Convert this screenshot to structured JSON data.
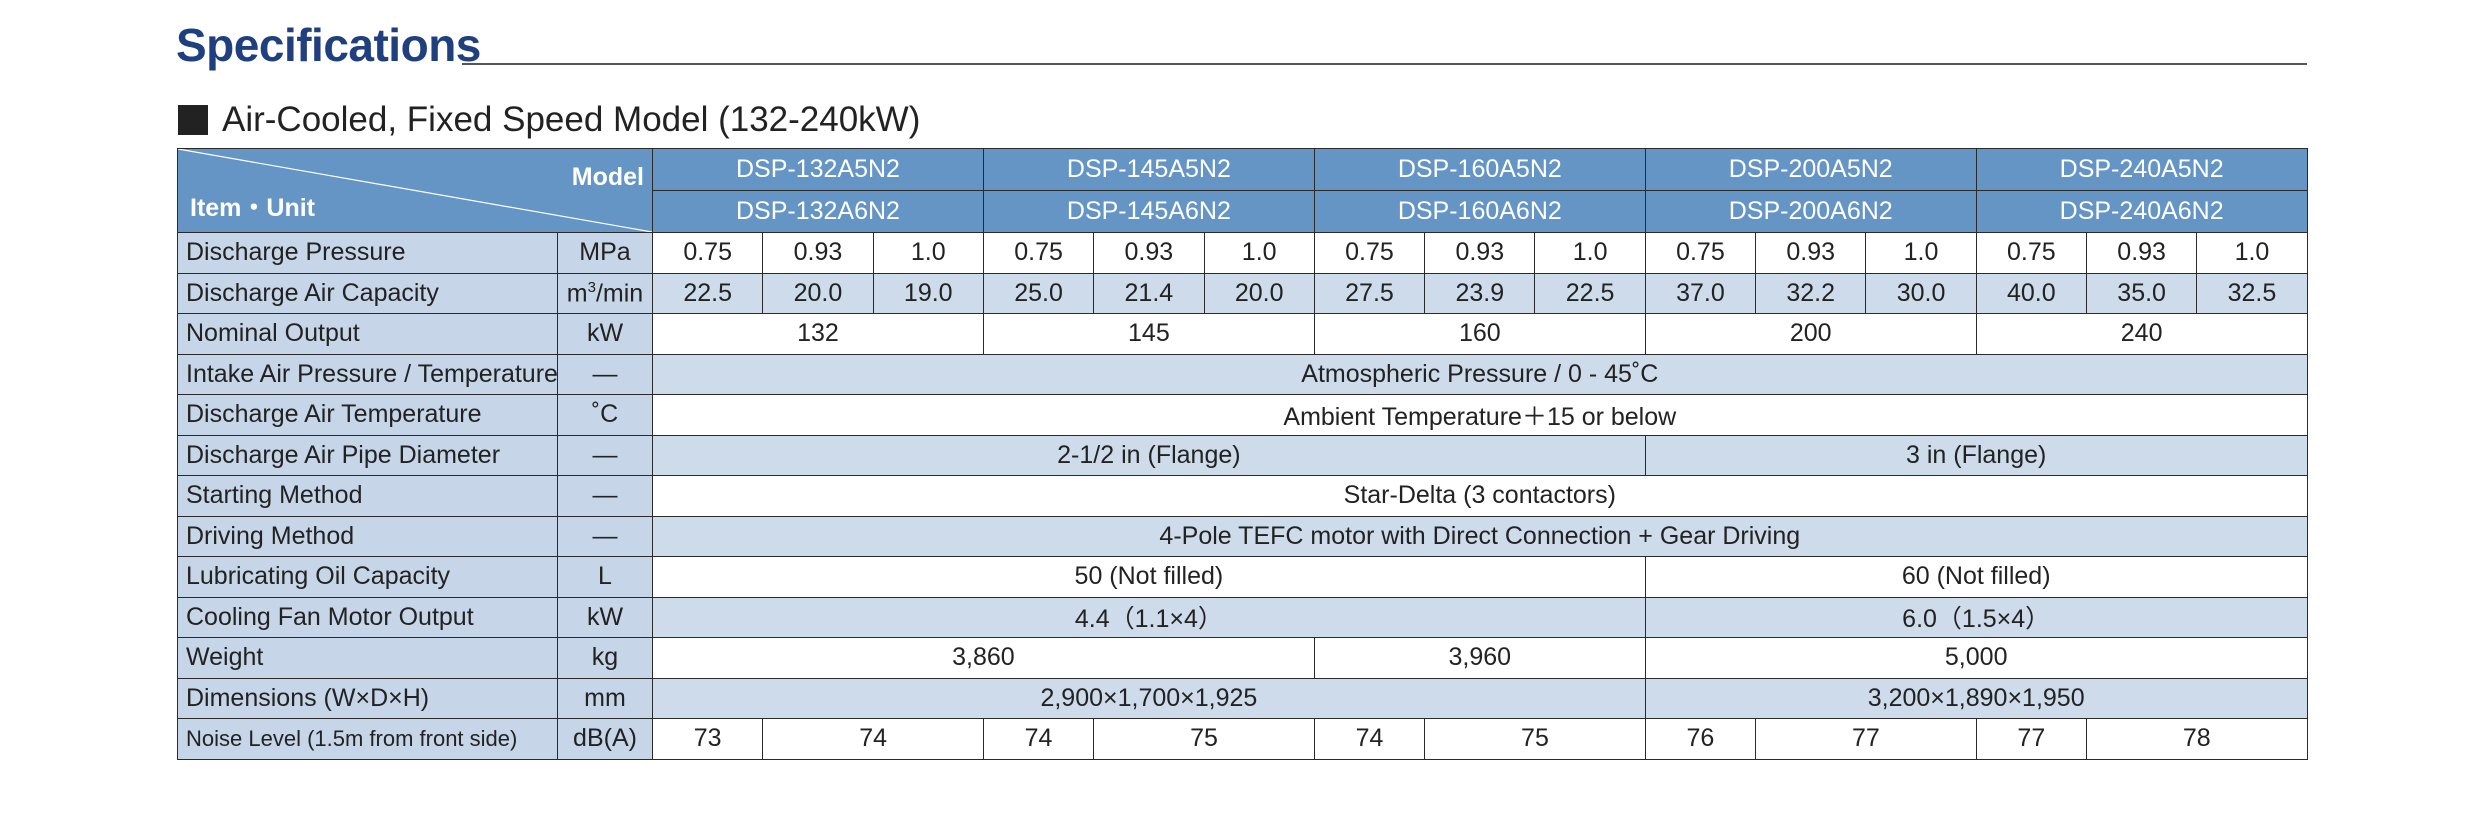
{
  "title": "Specifications",
  "section_heading": "Air-Cooled, Fixed Speed Model (132-240kW)",
  "table": {
    "corner_model_label": "Model",
    "corner_item_label": "Item・Unit",
    "models": [
      {
        "line1": "DSP-132A5N2",
        "line2": "DSP-132A6N2"
      },
      {
        "line1": "DSP-145A5N2",
        "line2": "DSP-145A6N2"
      },
      {
        "line1": "DSP-160A5N2",
        "line2": "DSP-160A6N2"
      },
      {
        "line1": "DSP-200A5N2",
        "line2": "DSP-200A6N2"
      },
      {
        "line1": "DSP-240A5N2",
        "line2": "DSP-240A6N2"
      }
    ],
    "rows": {
      "discharge_pressure": {
        "item": "Discharge Pressure",
        "unit": "MPa",
        "values": [
          "0.75",
          "0.93",
          "1.0",
          "0.75",
          "0.93",
          "1.0",
          "0.75",
          "0.93",
          "1.0",
          "0.75",
          "0.93",
          "1.0",
          "0.75",
          "0.93",
          "1.0"
        ]
      },
      "discharge_air_capacity": {
        "item": "Discharge Air Capacity",
        "unit_prefix": "m",
        "unit_sup": "3",
        "unit_suffix": "/min",
        "values": [
          "22.5",
          "20.0",
          "19.0",
          "25.0",
          "21.4",
          "20.0",
          "27.5",
          "23.9",
          "22.5",
          "37.0",
          "32.2",
          "30.0",
          "40.0",
          "35.0",
          "32.5"
        ]
      },
      "nominal_output": {
        "item": "Nominal Output",
        "unit": "kW",
        "values": [
          "132",
          "145",
          "160",
          "200",
          "240"
        ]
      },
      "intake_air": {
        "item": "Intake Air Pressure / Temperature",
        "unit": "—",
        "value": "Atmospheric Pressure / 0 - 45˚C"
      },
      "discharge_air_temp": {
        "item": "Discharge Air Temperature",
        "unit": "˚C",
        "value": "Ambient Temperature＋15 or below"
      },
      "pipe_diameter": {
        "item": "Discharge Air Pipe Diameter",
        "unit": "—",
        "values": [
          "2-1/2 in (Flange)",
          "3 in (Flange)"
        ]
      },
      "starting_method": {
        "item": "Starting Method",
        "unit": "—",
        "value": "Star-Delta (3 contactors)"
      },
      "driving_method": {
        "item": "Driving Method",
        "unit": "—",
        "value": "4-Pole TEFC motor with Direct Connection + Gear Driving"
      },
      "oil_capacity": {
        "item": "Lubricating Oil Capacity",
        "unit": "L",
        "values": [
          "50 (Not filled)",
          "60 (Not filled)"
        ]
      },
      "fan_motor": {
        "item": "Cooling Fan Motor Output",
        "unit": "kW",
        "values": [
          "4.4（1.1×4）",
          "6.0（1.5×4）"
        ]
      },
      "weight": {
        "item": "Weight",
        "unit": "kg",
        "values": [
          "3,860",
          "3,960",
          "5,000"
        ]
      },
      "dimensions": {
        "item": "Dimensions (W×D×H)",
        "unit": "mm",
        "values": [
          "2,900×1,700×1,925",
          "3,200×1,890×1,950"
        ]
      },
      "noise": {
        "item": "Noise Level (1.5m from front side)",
        "unit": "dB(A)",
        "values": [
          "73",
          "74",
          "74",
          "75",
          "74",
          "75",
          "76",
          "77",
          "77",
          "78"
        ]
      }
    }
  },
  "colors": {
    "title": "#1f3f7f",
    "header_bg": "#6495c4",
    "label_bg": "#c6d6e8",
    "row_band": "#cddbea"
  }
}
